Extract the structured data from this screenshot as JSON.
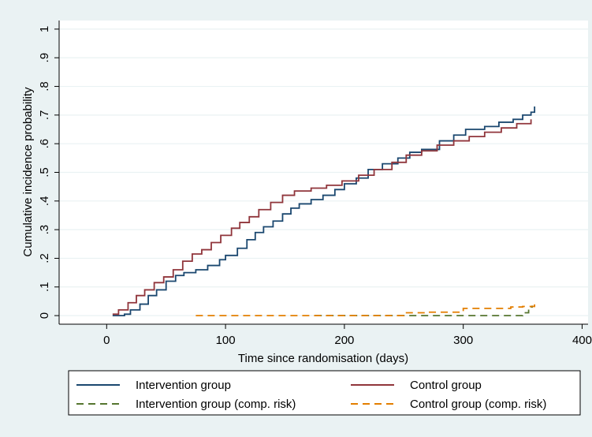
{
  "chart_data": {
    "type": "line",
    "title": "",
    "xlabel": "Time since randomisation (days)",
    "ylabel": "Cumulative incidence probability",
    "xlim": [
      -40,
      405
    ],
    "ylim": [
      -0.03,
      1.03
    ],
    "xticks": [
      0,
      100,
      200,
      300,
      400
    ],
    "xtick_labels": [
      "0",
      "100",
      "200",
      "300",
      "400"
    ],
    "yticks": [
      0,
      0.1,
      0.2,
      0.3,
      0.4,
      0.5,
      0.6,
      0.7,
      0.8,
      0.9,
      1
    ],
    "ytick_labels": [
      "0",
      ".1",
      ".2",
      ".3",
      ".4",
      ".5",
      ".6",
      ".7",
      ".8",
      ".9",
      "1"
    ],
    "grid": "horizontal",
    "legend_position": "bottom",
    "series": [
      {
        "name": "Intervention group",
        "color": "#1a476f",
        "style": "solid",
        "points": [
          [
            5,
            0
          ],
          [
            15,
            0.005
          ],
          [
            20,
            0.02
          ],
          [
            28,
            0.04
          ],
          [
            35,
            0.07
          ],
          [
            42,
            0.09
          ],
          [
            50,
            0.12
          ],
          [
            58,
            0.14
          ],
          [
            65,
            0.15
          ],
          [
            75,
            0.16
          ],
          [
            85,
            0.175
          ],
          [
            95,
            0.195
          ],
          [
            100,
            0.21
          ],
          [
            110,
            0.235
          ],
          [
            118,
            0.265
          ],
          [
            125,
            0.29
          ],
          [
            132,
            0.31
          ],
          [
            140,
            0.33
          ],
          [
            148,
            0.355
          ],
          [
            155,
            0.375
          ],
          [
            162,
            0.39
          ],
          [
            172,
            0.405
          ],
          [
            182,
            0.42
          ],
          [
            192,
            0.44
          ],
          [
            200,
            0.46
          ],
          [
            210,
            0.48
          ],
          [
            220,
            0.51
          ],
          [
            232,
            0.53
          ],
          [
            245,
            0.55
          ],
          [
            255,
            0.57
          ],
          [
            265,
            0.58
          ],
          [
            280,
            0.61
          ],
          [
            292,
            0.63
          ],
          [
            302,
            0.65
          ],
          [
            318,
            0.66
          ],
          [
            330,
            0.675
          ],
          [
            342,
            0.685
          ],
          [
            350,
            0.7
          ],
          [
            357,
            0.71
          ],
          [
            360,
            0.73
          ]
        ]
      },
      {
        "name": "Control group",
        "color": "#90353b",
        "style": "solid",
        "points": [
          [
            5,
            0.005
          ],
          [
            10,
            0.02
          ],
          [
            18,
            0.045
          ],
          [
            25,
            0.07
          ],
          [
            32,
            0.09
          ],
          [
            40,
            0.115
          ],
          [
            48,
            0.135
          ],
          [
            56,
            0.16
          ],
          [
            64,
            0.19
          ],
          [
            72,
            0.215
          ],
          [
            80,
            0.23
          ],
          [
            88,
            0.255
          ],
          [
            96,
            0.28
          ],
          [
            105,
            0.305
          ],
          [
            112,
            0.325
          ],
          [
            120,
            0.345
          ],
          [
            128,
            0.37
          ],
          [
            138,
            0.395
          ],
          [
            148,
            0.42
          ],
          [
            158,
            0.435
          ],
          [
            172,
            0.445
          ],
          [
            185,
            0.455
          ],
          [
            198,
            0.47
          ],
          [
            212,
            0.49
          ],
          [
            225,
            0.51
          ],
          [
            240,
            0.535
          ],
          [
            252,
            0.56
          ],
          [
            265,
            0.575
          ],
          [
            278,
            0.595
          ],
          [
            292,
            0.61
          ],
          [
            305,
            0.625
          ],
          [
            318,
            0.64
          ],
          [
            332,
            0.655
          ],
          [
            345,
            0.67
          ],
          [
            357,
            0.685
          ]
        ]
      },
      {
        "name": "Intervention group (comp. risk)",
        "color": "#55752f",
        "style": "dashed",
        "points": [
          [
            175,
            0
          ],
          [
            345,
            0
          ],
          [
            350,
            0.01
          ],
          [
            355,
            0.03
          ],
          [
            358,
            0.035
          ]
        ]
      },
      {
        "name": "Control group (comp. risk)",
        "color": "#e37e00",
        "style": "dashed",
        "points": [
          [
            75,
            0
          ],
          [
            245,
            0
          ],
          [
            250,
            0.01
          ],
          [
            270,
            0.012
          ],
          [
            300,
            0.025
          ],
          [
            340,
            0.03
          ],
          [
            350,
            0.032
          ],
          [
            360,
            0.04
          ]
        ]
      }
    ]
  }
}
